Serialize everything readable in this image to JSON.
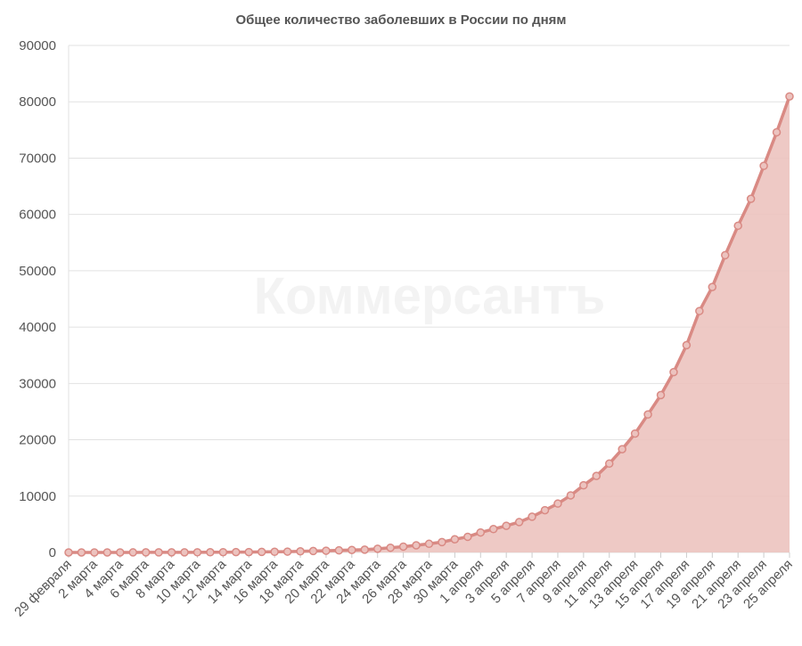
{
  "chart_data": {
    "type": "area",
    "title": "Общее количество заболевших в России по дням",
    "watermark": "Коммерсантъ",
    "categories": [
      "29 февраля",
      null,
      "2 марта",
      null,
      "4 марта",
      null,
      "6 марта",
      null,
      "8 марта",
      null,
      "10 марта",
      null,
      "12 марта",
      null,
      "14 марта",
      null,
      "16 марта",
      null,
      "18 марта",
      null,
      "20 марта",
      null,
      "22 марта",
      null,
      "24 марта",
      null,
      "26 марта",
      null,
      "28 марта",
      null,
      "30 марта",
      null,
      "1 апреля",
      null,
      "3 апреля",
      null,
      "5 апреля",
      null,
      "7 апреля",
      null,
      "9 апреля",
      null,
      "11 апреля",
      null,
      "13 апреля",
      null,
      "15 апреля",
      null,
      "17 апреля",
      null,
      "19 апреля",
      null,
      "21 апреля",
      null,
      "23 апреля",
      null,
      "25 апреля"
    ],
    "values": [
      2,
      3,
      3,
      3,
      4,
      10,
      14,
      17,
      20,
      20,
      28,
      34,
      45,
      59,
      63,
      93,
      114,
      147,
      199,
      253,
      306,
      367,
      438,
      495,
      658,
      840,
      1036,
      1264,
      1534,
      1836,
      2337,
      2777,
      3548,
      4149,
      4731,
      5389,
      6343,
      7497,
      8672,
      10131,
      11917,
      13584,
      15770,
      18328,
      21102,
      24490,
      27938,
      32008,
      36793,
      42853,
      47121,
      52763,
      57999,
      62773,
      68622,
      74588,
      80949
    ],
    "color": "#d98a84",
    "fill_color": "#ecc3bf",
    "ylim": [
      0,
      90000
    ],
    "yticks": [
      0,
      10000,
      20000,
      30000,
      40000,
      50000,
      60000,
      70000,
      80000,
      90000
    ],
    "grid": true
  }
}
